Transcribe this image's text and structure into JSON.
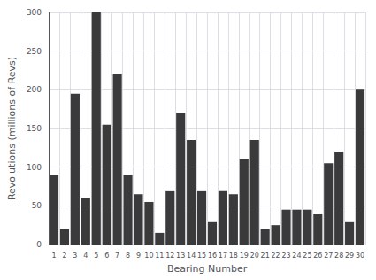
{
  "chart_data": {
    "type": "bar",
    "xlabel": "Bearing Number",
    "ylabel": "Revolutions (millions of Revs)",
    "categories": [
      "1",
      "2",
      "3",
      "4",
      "5",
      "6",
      "7",
      "8",
      "9",
      "10",
      "11",
      "12",
      "13",
      "14",
      "15",
      "16",
      "17",
      "18",
      "19",
      "20",
      "21",
      "22",
      "23",
      "24",
      "25",
      "26",
      "27",
      "28",
      "29",
      "30"
    ],
    "values": [
      90,
      20,
      195,
      60,
      300,
      155,
      220,
      90,
      65,
      55,
      15,
      70,
      170,
      135,
      70,
      30,
      70,
      65,
      110,
      135,
      20,
      25,
      45,
      45,
      45,
      40,
      105,
      120,
      30,
      200
    ],
    "color": "#3a3a3a",
    "ylim": [
      0,
      300
    ],
    "yticks": [
      0,
      50,
      100,
      150,
      200,
      250,
      300
    ],
    "grid": true
  }
}
